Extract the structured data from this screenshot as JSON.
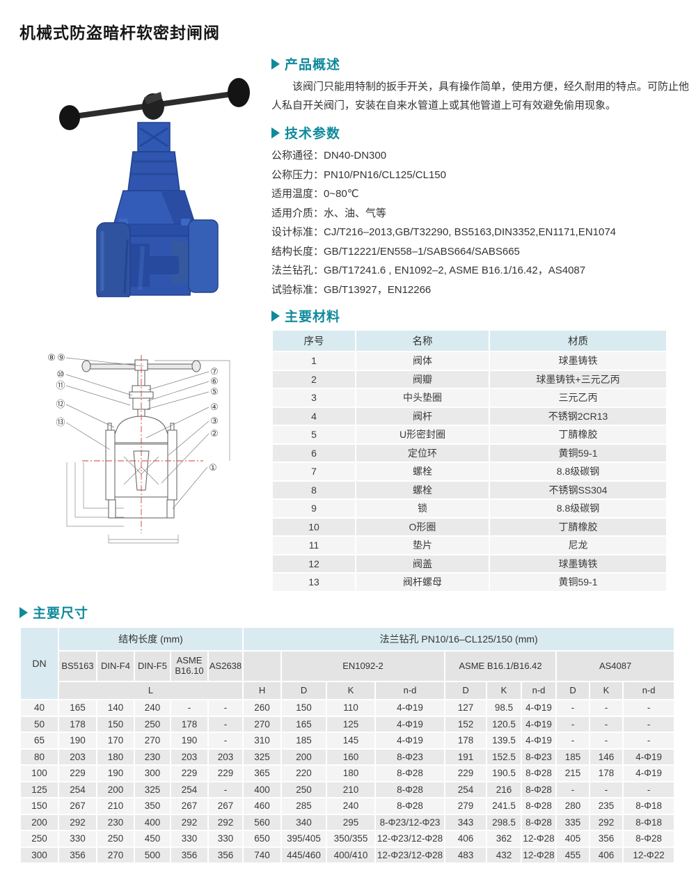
{
  "title": "机械式防盗暗杆软密封闸阀",
  "colors": {
    "accent": "#0f8a9c",
    "table_header_bg": "#d9ebf0",
    "table_subheader_bg": "#e4e4e4",
    "row_odd": "#f4f4f4",
    "row_even": "#e9e9e9",
    "valve_blue": "#2f55ae",
    "handle_black": "#1c1c1c"
  },
  "overview": {
    "heading": "产品概述",
    "body": "该阀门只能用特制的扳手开关，具有操作简单，使用方便，经久耐用的特点。可防止他人私自开关阀门，安装在自来水管道上或其他管道上可有效避免偷用现象。"
  },
  "tech": {
    "heading": "技术参数",
    "params": [
      {
        "label": "公称通径",
        "value": "DN40-DN300"
      },
      {
        "label": "公称压力",
        "value": "PN10/PN16/CL125/CL150"
      },
      {
        "label": "适用温度",
        "value": "0~80℃"
      },
      {
        "label": "适用介质",
        "value": "水、油、气等"
      },
      {
        "label": "设计标准",
        "value": "CJ/T216–2013,GB/T32290, BS5163,DIN3352,EN1171,EN1074"
      },
      {
        "label": "结构长度",
        "value": "GB/T12221/EN558–1/SABS664/SABS665"
      },
      {
        "label": "法兰钻孔",
        "value": "GB/T17241.6 , EN1092–2, ASME B16.1/16.42，AS4087"
      },
      {
        "label": "试验标准",
        "value": "GB/T13927，EN12266"
      }
    ]
  },
  "materials": {
    "heading": "主要材料",
    "columns": [
      "序号",
      "名称",
      "材质"
    ],
    "rows": [
      [
        "1",
        "阀体",
        "球墨铸铁"
      ],
      [
        "2",
        "阀瓣",
        "球墨铸铁+三元乙丙"
      ],
      [
        "3",
        "中头垫圈",
        "三元乙丙"
      ],
      [
        "4",
        "阀杆",
        "不锈钢2CR13"
      ],
      [
        "5",
        "U形密封圈",
        "丁腈橡胶"
      ],
      [
        "6",
        "定位环",
        "黄铜59-1"
      ],
      [
        "7",
        "螺栓",
        "8.8级碳钢"
      ],
      [
        "8",
        "螺栓",
        "不锈钢SS304"
      ],
      [
        "9",
        "锁",
        "8.8级碳钢"
      ],
      [
        "10",
        "O形圈",
        "丁腈橡胶"
      ],
      [
        "11",
        "垫片",
        "尼龙"
      ],
      [
        "12",
        "阀盖",
        "球墨铸铁"
      ],
      [
        "13",
        "阀杆螺母",
        "黄铜59-1"
      ]
    ]
  },
  "dimensions": {
    "heading": "主要尺寸",
    "group_structure": "结构长度 (mm)",
    "group_flange": "法兰钻孔 PN10/16–CL125/150 (mm)",
    "dn_label": "DN",
    "structure_cols": [
      "BS5163",
      "DIN-F4",
      "DIN-F5",
      "ASME B16.10",
      "AS2638"
    ],
    "structure_sub": "L",
    "flange_groups": [
      "EN1092-2",
      "ASME B16.1/B16.42",
      "AS4087"
    ],
    "sub_cols": [
      "H",
      "D",
      "K",
      "n-d",
      "D",
      "K",
      "n-d",
      "D",
      "K",
      "n-d"
    ],
    "rows": [
      [
        "40",
        "165",
        "140",
        "240",
        "-",
        "-",
        "260",
        "150",
        "110",
        "4-Φ19",
        "127",
        "98.5",
        "4-Φ19",
        "-",
        "-",
        "-"
      ],
      [
        "50",
        "178",
        "150",
        "250",
        "178",
        "-",
        "270",
        "165",
        "125",
        "4-Φ19",
        "152",
        "120.5",
        "4-Φ19",
        "-",
        "-",
        "-"
      ],
      [
        "65",
        "190",
        "170",
        "270",
        "190",
        "-",
        "310",
        "185",
        "145",
        "4-Φ19",
        "178",
        "139.5",
        "4-Φ19",
        "-",
        "-",
        "-"
      ],
      [
        "80",
        "203",
        "180",
        "230",
        "203",
        "203",
        "325",
        "200",
        "160",
        "8-Φ23",
        "191",
        "152.5",
        "8-Φ23",
        "185",
        "146",
        "4-Φ19"
      ],
      [
        "100",
        "229",
        "190",
        "300",
        "229",
        "229",
        "365",
        "220",
        "180",
        "8-Φ28",
        "229",
        "190.5",
        "8-Φ28",
        "215",
        "178",
        "4-Φ19"
      ],
      [
        "125",
        "254",
        "200",
        "325",
        "254",
        "-",
        "400",
        "250",
        "210",
        "8-Φ28",
        "254",
        "216",
        "8-Φ28",
        "-",
        "-",
        "-"
      ],
      [
        "150",
        "267",
        "210",
        "350",
        "267",
        "267",
        "460",
        "285",
        "240",
        "8-Φ28",
        "279",
        "241.5",
        "8-Φ28",
        "280",
        "235",
        "8-Φ18"
      ],
      [
        "200",
        "292",
        "230",
        "400",
        "292",
        "292",
        "560",
        "340",
        "295",
        "8-Φ23/12-Φ23",
        "343",
        "298.5",
        "8-Φ28",
        "335",
        "292",
        "8-Φ18"
      ],
      [
        "250",
        "330",
        "250",
        "450",
        "330",
        "330",
        "650",
        "395/405",
        "350/355",
        "12-Φ23/12-Φ28",
        "406",
        "362",
        "12-Φ28",
        "405",
        "356",
        "8-Φ28"
      ],
      [
        "300",
        "356",
        "270",
        "500",
        "356",
        "356",
        "740",
        "445/460",
        "400/410",
        "12-Φ23/12-Φ28",
        "483",
        "432",
        "12-Φ28",
        "455",
        "406",
        "12-Φ22"
      ]
    ]
  },
  "diagram": {
    "callouts": [
      "①",
      "②",
      "③",
      "④",
      "⑤",
      "⑥",
      "⑦",
      "⑧",
      "⑨",
      "⑩",
      "⑪",
      "⑫",
      "⑬"
    ]
  }
}
